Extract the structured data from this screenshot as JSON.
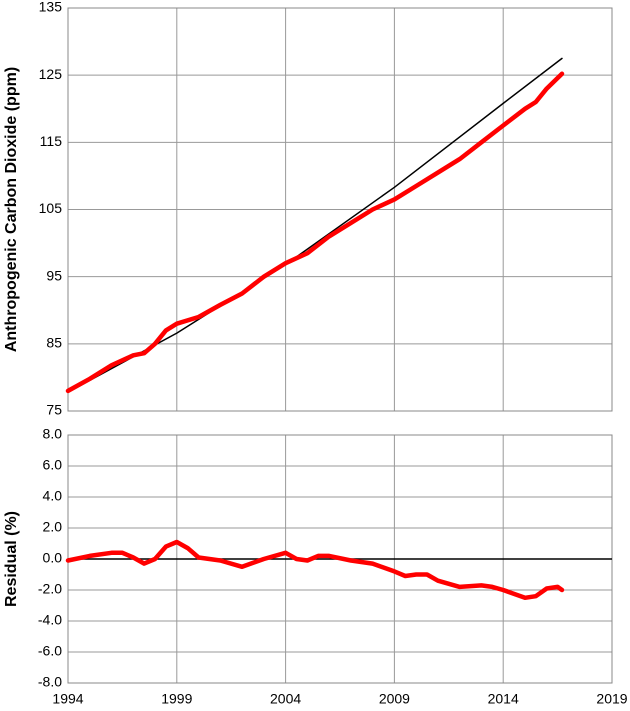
{
  "chart_data": [
    {
      "type": "line",
      "ylabel": "Anthropogenic Carbon Dioxide (ppm)",
      "xlim": [
        1994,
        2019
      ],
      "ylim": [
        75,
        135
      ],
      "yticks": [
        75,
        85,
        95,
        105,
        115,
        125,
        135
      ],
      "grid": true,
      "series": [
        {
          "color": "#000000",
          "x": [
            1994,
            1999,
            2004,
            2009,
            2014,
            2016.7
          ],
          "values": [
            77.8,
            86.6,
            96.8,
            108.3,
            120.8,
            127.5
          ]
        },
        {
          "color": "#ff0000",
          "x": [
            1994,
            1995,
            1996,
            1997,
            1997.5,
            1998,
            1998.5,
            1999,
            2000,
            2001,
            2002,
            2003,
            2004,
            2005,
            2006,
            2007,
            2008,
            2009,
            2010,
            2011,
            2012,
            2013,
            2014,
            2015,
            2015.5,
            2016,
            2016.7
          ],
          "values": [
            78,
            79.8,
            81.8,
            83.3,
            83.6,
            85,
            87,
            88,
            89,
            90.8,
            92.5,
            95,
            97,
            98.5,
            101,
            103,
            105,
            106.5,
            108.5,
            110.5,
            112.5,
            115,
            117.5,
            120,
            121,
            123,
            125.2
          ]
        }
      ]
    },
    {
      "type": "line",
      "ylabel": "Residual (%)",
      "xlim": [
        1994,
        2019
      ],
      "xticks": [
        1994,
        1999,
        2004,
        2009,
        2014,
        2019
      ],
      "ylim": [
        -8,
        8
      ],
      "yticks": [
        {
          "value": -8,
          "label": "-8.0"
        },
        {
          "value": -6,
          "label": "-6.0"
        },
        {
          "value": -4,
          "label": "-4.0"
        },
        {
          "value": -2,
          "label": "-2.0"
        },
        {
          "value": 0,
          "label": "0.0"
        },
        {
          "value": 2,
          "label": "2.0"
        },
        {
          "value": 4,
          "label": "4.0"
        },
        {
          "value": 6,
          "label": "6.0"
        },
        {
          "value": 8,
          "label": "8.0"
        }
      ],
      "grid": true,
      "hline": 0,
      "series": [
        {
          "color": "#ff0000",
          "x": [
            1994,
            1995,
            1996,
            1996.5,
            1997,
            1997.5,
            1998,
            1998.5,
            1999,
            1999.5,
            2000,
            2001,
            2002,
            2003,
            2004,
            2004.5,
            2005,
            2005.5,
            2006,
            2007,
            2008,
            2009,
            2009.5,
            2010,
            2010.5,
            2011,
            2012,
            2013,
            2013.5,
            2014,
            2015,
            2015.5,
            2016,
            2016.5,
            2016.7
          ],
          "values": [
            -0.1,
            0.2,
            0.4,
            0.4,
            0.1,
            -0.3,
            0,
            0.8,
            1.1,
            0.7,
            0.1,
            -0.1,
            -0.5,
            0,
            0.4,
            0,
            -0.1,
            0.2,
            0.2,
            -0.1,
            -0.3,
            -0.8,
            -1.1,
            -1.0,
            -1.0,
            -1.4,
            -1.8,
            -1.7,
            -1.8,
            -2.0,
            -2.5,
            -2.4,
            -1.9,
            -1.8,
            -2.0
          ]
        }
      ]
    }
  ]
}
